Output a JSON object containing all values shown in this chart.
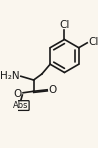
{
  "bg_color": "#faf6ee",
  "bond_color": "#1a1a1a",
  "text_color": "#1a1a1a",
  "cl1_label": "Cl",
  "cl2_label": "Cl",
  "h2n_label": "H₂N",
  "abs_label": "Abs",
  "line_width": 1.2,
  "font_size": 7.5
}
